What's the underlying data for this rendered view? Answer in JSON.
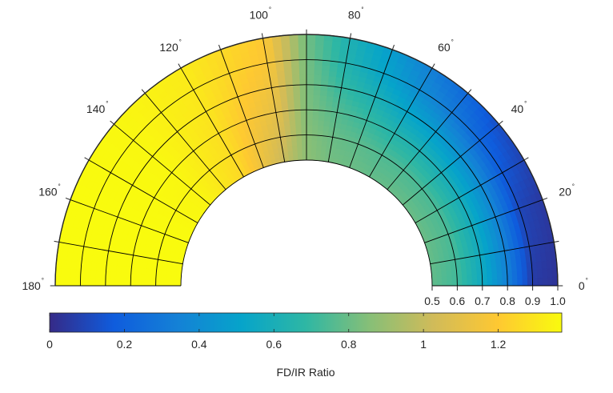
{
  "chart_data": {
    "type": "heatmap",
    "coordinate_system": "polar-half",
    "theta_unit": "degrees",
    "theta_range": [
      0,
      180
    ],
    "theta_ticks": [
      0,
      20,
      40,
      60,
      80,
      100,
      120,
      140,
      160,
      180
    ],
    "theta_tick_labels": [
      "0",
      "20",
      "40",
      "60",
      "80",
      "100",
      "120",
      "140",
      "160",
      "180"
    ],
    "degree_symbol": "°",
    "r_range": [
      0.5,
      1.0
    ],
    "r_ticks": [
      0.5,
      0.6,
      0.7,
      0.8,
      0.9,
      1.0
    ],
    "r_tick_labels": [
      "0.5",
      "0.6",
      "0.7",
      "0.8",
      "0.9",
      "1.0"
    ],
    "grid": true,
    "grid_theta_step": 10,
    "grid_r_step": 0.1,
    "colormap": "parula",
    "colormap_stops": [
      "#352a87",
      "#0f5cdd",
      "#1481d6",
      "#06a4ca",
      "#2eb7a4",
      "#87bf77",
      "#d1bb59",
      "#fec832",
      "#f9fb0e"
    ],
    "colorbar": {
      "orientation": "horizontal",
      "location": "bottom",
      "range": [
        0,
        1.37
      ],
      "ticks": [
        0,
        0.2,
        0.4,
        0.6,
        0.8,
        1,
        1.2
      ],
      "tick_labels": [
        "0",
        "0.2",
        "0.4",
        "0.6",
        "0.8",
        "1",
        "1.2"
      ],
      "label": "FD/IR Ratio"
    },
    "theta_samples": [
      0,
      20,
      40,
      60,
      80,
      90,
      100,
      120,
      140,
      160,
      180
    ],
    "r_samples": [
      0.5,
      0.6,
      0.7,
      0.8,
      0.9,
      1.0
    ],
    "values": [
      [
        0.78,
        0.8,
        0.8,
        0.79,
        0.82,
        0.87,
        1.0,
        1.25,
        1.35,
        1.37,
        1.37
      ],
      [
        0.72,
        0.74,
        0.74,
        0.75,
        0.8,
        0.86,
        1.05,
        1.27,
        1.35,
        1.37,
        1.37
      ],
      [
        0.56,
        0.58,
        0.6,
        0.65,
        0.76,
        0.84,
        1.1,
        1.28,
        1.36,
        1.37,
        1.37
      ],
      [
        0.34,
        0.36,
        0.42,
        0.52,
        0.7,
        0.83,
        1.14,
        1.3,
        1.36,
        1.37,
        1.37
      ],
      [
        0.06,
        0.1,
        0.22,
        0.4,
        0.64,
        0.82,
        1.18,
        1.31,
        1.36,
        1.37,
        1.37
      ],
      [
        0.03,
        0.05,
        0.12,
        0.33,
        0.62,
        0.81,
        1.2,
        1.32,
        1.36,
        1.37,
        1.37
      ]
    ]
  }
}
